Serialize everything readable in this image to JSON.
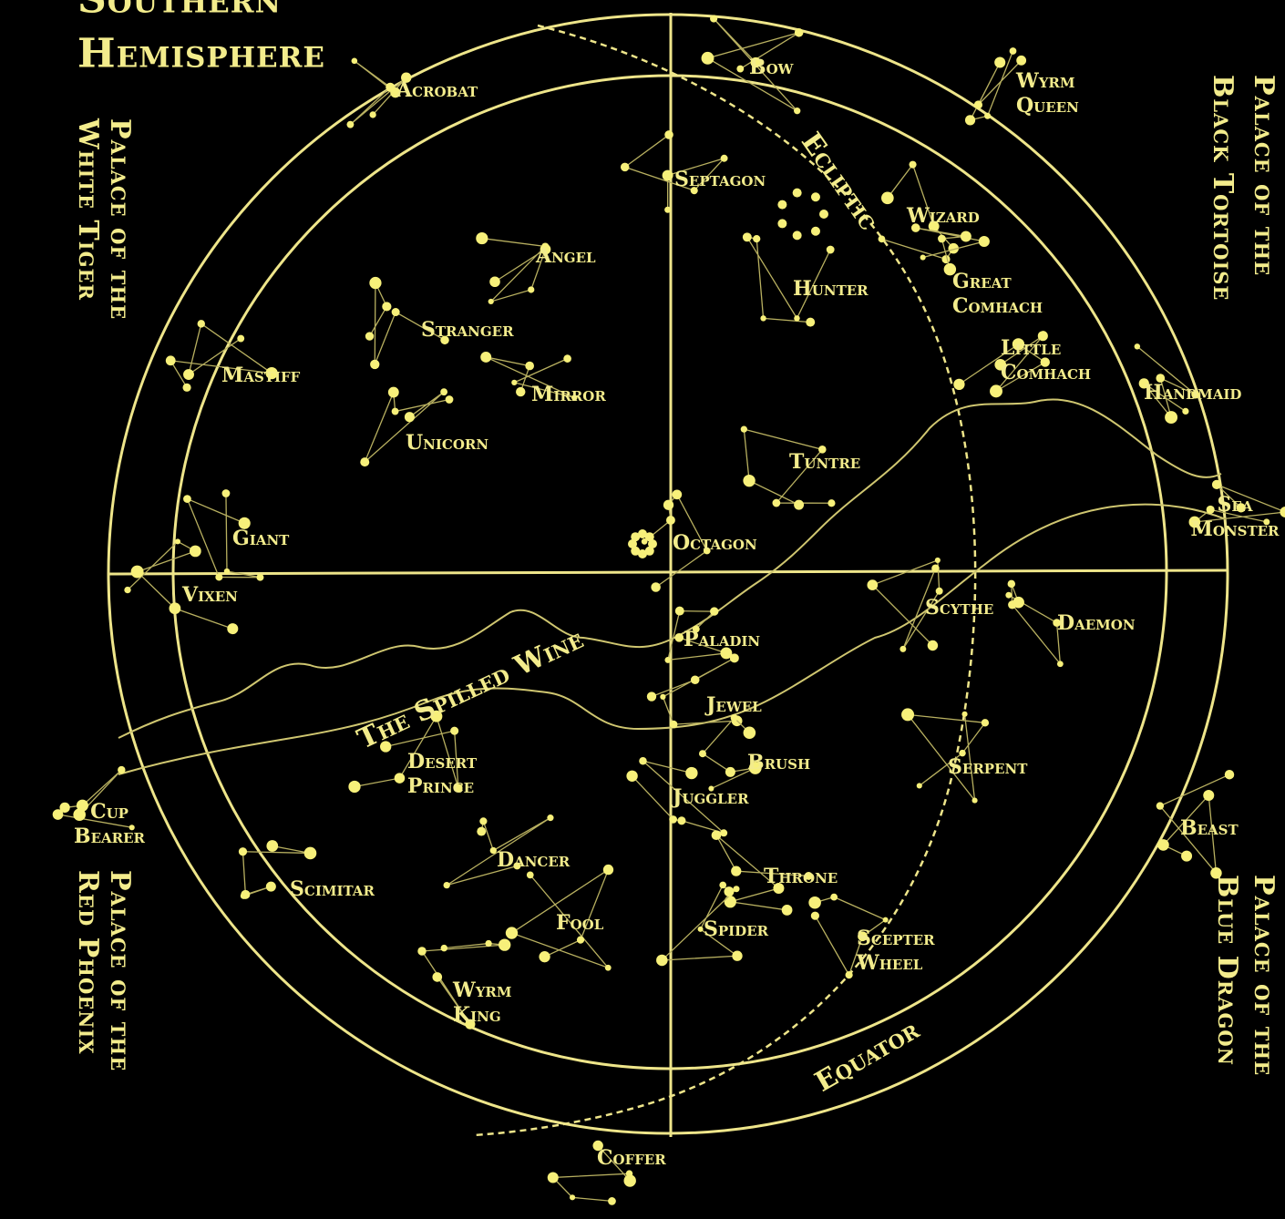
{
  "title": [
    "Southern",
    "Hemisphere"
  ],
  "palaces": [
    [
      "Palace of the",
      "White Tiger"
    ],
    [
      "Palace of the",
      "Black Tortoise"
    ],
    [
      "Palace of the",
      "Red Phoenix"
    ],
    [
      "Palace of the",
      "Blue Dragon"
    ]
  ],
  "labels": [
    [
      "Acrobat"
    ],
    [
      "Bow"
    ],
    [
      "Wyrm",
      "Queen"
    ],
    [
      "Septagon"
    ],
    [
      "Ecliptic"
    ],
    [
      "Wizard"
    ],
    [
      "Angel"
    ],
    [
      "Hunter"
    ],
    [
      "Great",
      "Comhach"
    ],
    [
      "Stranger"
    ],
    [
      "Little",
      "Comhach"
    ],
    [
      "Handmaid"
    ],
    [
      "Mastiff"
    ],
    [
      "Mirror"
    ],
    [
      "Unicorn"
    ],
    [
      "Tuntre"
    ],
    [
      "Sea",
      "Monster"
    ],
    [
      "Giant"
    ],
    [
      "Octagon"
    ],
    [
      "Vixen"
    ],
    [
      "Scythe"
    ],
    [
      "Daemon"
    ],
    [
      "Paladin"
    ],
    [
      "The Spilled Wine"
    ],
    [
      "Jewel"
    ],
    [
      "Desert",
      "Prince"
    ],
    [
      "Brush"
    ],
    [
      "Serpent"
    ],
    [
      "Cup",
      "Bearer"
    ],
    [
      "Juggler"
    ],
    [
      "Beast"
    ],
    [
      "Dancer"
    ],
    [
      "Scimitar"
    ],
    [
      "Throne"
    ],
    [
      "Fool"
    ],
    [
      "Spider"
    ],
    [
      "Scepter",
      "Wheel"
    ],
    [
      "Wyrm",
      "King"
    ],
    [
      "Equator"
    ],
    [
      "Coffer"
    ]
  ]
}
